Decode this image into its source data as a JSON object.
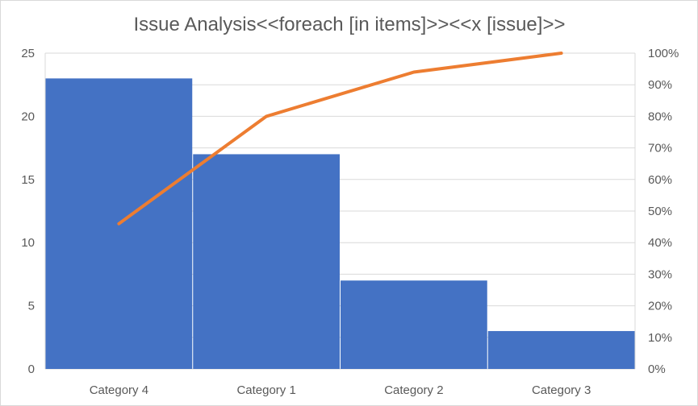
{
  "chart_data": {
    "type": "bar",
    "title": "Issue Analysis<<foreach [in items]>><<x [issue]>>",
    "categories": [
      "Category 4",
      "Category 1",
      "Category 2",
      "Category 3"
    ],
    "series": [
      {
        "values": [
          23,
          17,
          7,
          3
        ],
        "color": "#4472C4",
        "axis": "left",
        "kind": "bar"
      },
      {
        "values": [
          0.46,
          0.8,
          0.94,
          1.0
        ],
        "color": "#ED7D31",
        "axis": "right",
        "kind": "line"
      }
    ],
    "ylim": [
      0,
      25
    ],
    "y_ticks": [
      "0",
      "5",
      "10",
      "15",
      "20",
      "25"
    ],
    "y2lim": [
      0,
      1
    ],
    "y2_ticks": [
      "0%",
      "10%",
      "20%",
      "30%",
      "40%",
      "50%",
      "60%",
      "70%",
      "80%",
      "90%",
      "100%"
    ],
    "grid": true,
    "legend": "none"
  }
}
